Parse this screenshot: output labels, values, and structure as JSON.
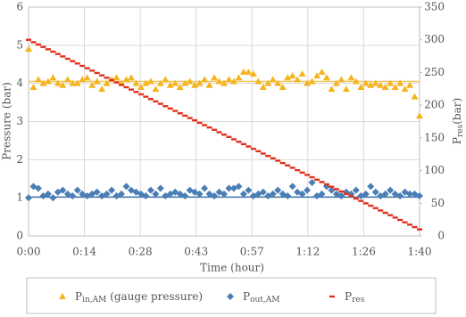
{
  "chart_data": {
    "type": "scatter",
    "xlabel": "Time (hour)",
    "ylabel": "Pressure (bar)",
    "y2label": {
      "main": "P",
      "sub": "res",
      "suffix": "(bar)"
    },
    "xlim": [
      0,
      100
    ],
    "xticks": [
      {
        "value": 0,
        "label": "0:00"
      },
      {
        "value": 14.2857,
        "label": "0:14"
      },
      {
        "value": 28.5714,
        "label": "0:28"
      },
      {
        "value": 42.8571,
        "label": "0:43"
      },
      {
        "value": 57.1429,
        "label": "0:57"
      },
      {
        "value": 71.4286,
        "label": "1:12"
      },
      {
        "value": 85.7143,
        "label": "1:26"
      },
      {
        "value": 100,
        "label": "1:40"
      }
    ],
    "ylim": [
      0,
      6
    ],
    "yticks": [
      0,
      1,
      2,
      3,
      4,
      5,
      6
    ],
    "y2lim": [
      0,
      350
    ],
    "y2ticks": [
      0,
      50,
      100,
      150,
      200,
      250,
      300,
      350
    ],
    "grid": true,
    "legend": "bottom",
    "x": [
      0,
      1.25,
      2.5,
      3.75,
      5,
      6.25,
      7.5,
      8.75,
      10,
      11.25,
      12.5,
      13.75,
      15,
      16.25,
      17.5,
      18.75,
      20,
      21.25,
      22.5,
      23.75,
      25,
      26.25,
      27.5,
      28.75,
      30,
      31.25,
      32.5,
      33.75,
      35,
      36.25,
      37.5,
      38.75,
      40,
      41.25,
      42.5,
      43.75,
      45,
      46.25,
      47.5,
      48.75,
      50,
      51.25,
      52.5,
      53.75,
      55,
      56.25,
      57.5,
      58.75,
      60,
      61.25,
      62.5,
      63.75,
      65,
      66.25,
      67.5,
      68.75,
      70,
      71.25,
      72.5,
      73.75,
      75,
      76.25,
      77.5,
      78.75,
      80,
      81.25,
      82.5,
      83.75,
      85,
      86.25,
      87.5,
      88.75,
      90,
      91.25,
      92.5,
      93.75,
      95,
      96.25,
      97.5,
      98.75,
      100
    ],
    "reference_lines": [
      {
        "value": 4.05,
        "color": "#f2c85a"
      },
      {
        "value": 1.02,
        "color": "#4a7eb5"
      }
    ],
    "series": [
      {
        "name": {
          "main": "P",
          "sub": "in,AM",
          "suffix": " (gauge pressure)"
        },
        "marker": "triangle",
        "color": "#f5b420",
        "values": [
          4.9,
          3.9,
          4.1,
          4.0,
          4.05,
          4.15,
          4.0,
          3.95,
          4.1,
          4.0,
          4.0,
          4.1,
          4.15,
          3.95,
          4.05,
          3.85,
          4.0,
          4.1,
          4.15,
          4.0,
          4.1,
          4.15,
          4.0,
          3.9,
          4.0,
          4.05,
          3.85,
          4.0,
          4.1,
          3.95,
          4.0,
          3.9,
          4.0,
          4.05,
          3.95,
          4.0,
          4.1,
          3.95,
          4.15,
          4.05,
          4.0,
          4.1,
          4.05,
          4.15,
          4.3,
          4.3,
          4.25,
          4.05,
          3.9,
          4.0,
          4.1,
          4.0,
          3.9,
          4.15,
          4.2,
          4.1,
          4.25,
          4.0,
          4.05,
          4.2,
          4.3,
          4.15,
          3.85,
          4.0,
          4.1,
          3.85,
          4.15,
          4.05,
          3.9,
          4.0,
          3.95,
          4.0,
          3.95,
          3.9,
          4.0,
          3.9,
          4.0,
          3.85,
          3.95,
          3.65,
          3.15
        ]
      },
      {
        "name": {
          "main": "P",
          "sub": "out,AM"
        },
        "marker": "diamond",
        "color": "#4a7eb5",
        "values": [
          1.0,
          1.3,
          1.25,
          1.05,
          1.1,
          1.0,
          1.15,
          1.2,
          1.1,
          1.05,
          1.2,
          1.1,
          1.05,
          1.1,
          1.15,
          1.05,
          1.1,
          1.2,
          1.05,
          1.1,
          1.3,
          1.2,
          1.15,
          1.1,
          1.05,
          1.2,
          1.1,
          1.25,
          1.05,
          1.1,
          1.15,
          1.1,
          1.05,
          1.2,
          1.15,
          1.1,
          1.25,
          1.1,
          1.05,
          1.15,
          1.1,
          1.25,
          1.25,
          1.3,
          1.1,
          1.2,
          1.05,
          1.1,
          1.15,
          1.05,
          1.1,
          1.2,
          1.1,
          1.05,
          1.3,
          1.15,
          1.1,
          1.2,
          1.4,
          1.05,
          1.1,
          1.3,
          1.2,
          1.1,
          1.05,
          1.15,
          1.1,
          1.2,
          1.05,
          1.1,
          1.3,
          1.15,
          1.05,
          1.1,
          1.2,
          1.1,
          1.05,
          1.15,
          1.1,
          1.1,
          1.05
        ]
      },
      {
        "name": {
          "main": "P",
          "sub": "res"
        },
        "marker": "dash",
        "color": "#e0301e",
        "axis": "y2",
        "values": [
          300.0,
          296.4,
          292.8,
          289.1,
          285.5,
          281.9,
          278.3,
          274.6,
          271.0,
          267.4,
          263.8,
          260.1,
          256.5,
          252.9,
          249.3,
          245.6,
          242.0,
          238.4,
          234.8,
          231.1,
          227.5,
          223.9,
          220.3,
          216.6,
          213.0,
          209.4,
          205.8,
          202.1,
          198.5,
          194.9,
          191.3,
          187.6,
          184.0,
          180.4,
          176.8,
          173.1,
          169.5,
          165.9,
          162.3,
          158.6,
          155.0,
          151.4,
          147.8,
          144.1,
          140.5,
          136.9,
          133.3,
          129.6,
          126.0,
          122.4,
          118.8,
          115.1,
          111.5,
          107.9,
          104.3,
          100.6,
          97.0,
          93.4,
          89.8,
          86.1,
          82.5,
          78.9,
          75.3,
          71.6,
          68.0,
          64.4,
          60.8,
          57.1,
          53.5,
          49.9,
          46.3,
          42.6,
          39.0,
          35.4,
          31.8,
          28.1,
          24.5,
          20.9,
          17.3,
          13.6,
          10.0
        ]
      }
    ]
  }
}
